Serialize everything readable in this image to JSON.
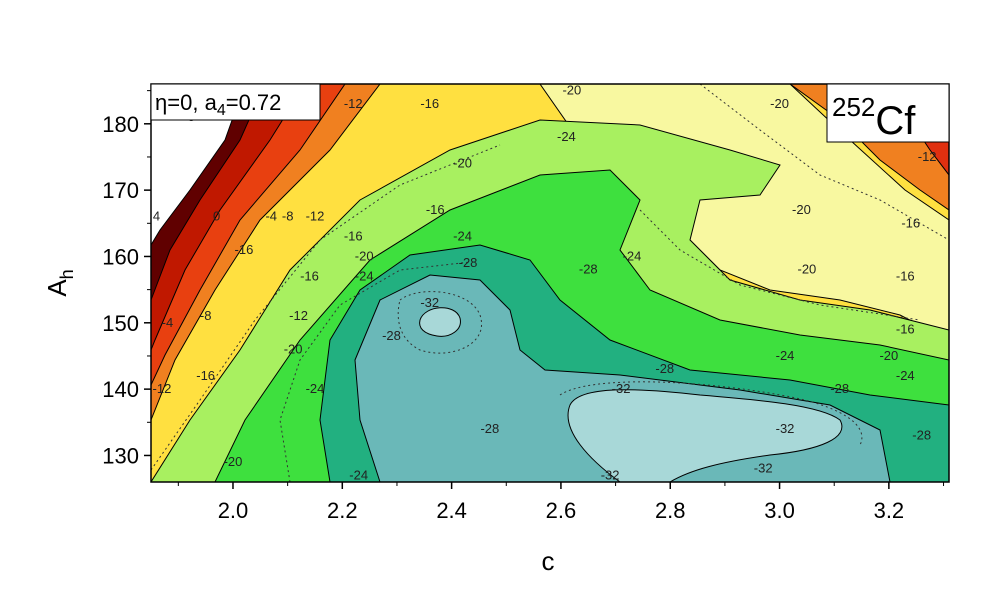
{
  "chart_data": {
    "type": "heatmap",
    "subtype": "contour",
    "title": "",
    "xlabel": "c",
    "ylabel_main": "A",
    "ylabel_sub": "h",
    "xlim": [
      1.85,
      3.31
    ],
    "ylim": [
      126,
      186
    ],
    "xticks": [
      "2.0",
      "2.2",
      "2.4",
      "2.6",
      "2.8",
      "3.0",
      "3.2"
    ],
    "xtick_values": [
      2.0,
      2.2,
      2.4,
      2.6,
      2.8,
      3.0,
      3.2
    ],
    "yticks": [
      "130",
      "140",
      "150",
      "160",
      "170",
      "180"
    ],
    "ytick_values": [
      130,
      140,
      150,
      160,
      170,
      180
    ],
    "annotation_params": {
      "eta": "η=0",
      "sep": ", ",
      "a4_label": "a",
      "a4_sub": "4",
      "a4_value": "=0.72"
    },
    "annotation_nucleus": {
      "mass": "252",
      "element": "Cf"
    },
    "levels": [
      -34,
      -32,
      -28,
      -24,
      -20,
      -16,
      -12,
      -8,
      -4,
      0,
      4
    ],
    "level_colors": [
      "#a8d8d8",
      "#6ab8b8",
      "#22b080",
      "#3ee03e",
      "#a8f060",
      "#f8f8a0",
      "#ffe040",
      "#f08020",
      "#d02000",
      "#600000",
      "#ffffff"
    ],
    "contour_labels": [
      {
        "c": 1.92,
        "A": 181,
        "text": "-8"
      },
      {
        "c": 1.97,
        "A": 183,
        "text": "-4"
      },
      {
        "c": 2.09,
        "A": 183,
        "text": "-4"
      },
      {
        "c": 2.15,
        "A": 183,
        "text": "-8"
      },
      {
        "c": 2.22,
        "A": 183,
        "text": "-12"
      },
      {
        "c": 2.36,
        "A": 183,
        "text": "-16"
      },
      {
        "c": 2.62,
        "A": 185,
        "text": "-20"
      },
      {
        "c": 3.0,
        "A": 183,
        "text": "-20"
      },
      {
        "c": 3.12,
        "A": 185,
        "text": "-16"
      },
      {
        "c": 3.27,
        "A": 175,
        "text": "-12"
      },
      {
        "c": 3.24,
        "A": 165,
        "text": "-16"
      },
      {
        "c": 3.23,
        "A": 157,
        "text": "-16"
      },
      {
        "c": 3.23,
        "A": 149,
        "text": "-16"
      },
      {
        "c": 3.2,
        "A": 145,
        "text": "-20"
      },
      {
        "c": 3.23,
        "A": 142,
        "text": "-24"
      },
      {
        "c": 3.11,
        "A": 140,
        "text": "-28"
      },
      {
        "c": 3.26,
        "A": 133,
        "text": "-28"
      },
      {
        "c": 3.05,
        "A": 158,
        "text": "-20"
      },
      {
        "c": 3.04,
        "A": 167,
        "text": "-20"
      },
      {
        "c": 3.01,
        "A": 145,
        "text": "-24"
      },
      {
        "c": 2.61,
        "A": 178,
        "text": "-24"
      },
      {
        "c": 2.42,
        "A": 174,
        "text": "-20"
      },
      {
        "c": 2.37,
        "A": 167,
        "text": "-16"
      },
      {
        "c": 2.42,
        "A": 163,
        "text": "-24"
      },
      {
        "c": 2.43,
        "A": 159,
        "text": "-28"
      },
      {
        "c": 2.24,
        "A": 160,
        "text": "-20"
      },
      {
        "c": 2.22,
        "A": 163,
        "text": "-16"
      },
      {
        "c": 2.1,
        "A": 166,
        "text": "-8"
      },
      {
        "c": 2.15,
        "A": 166,
        "text": "-12"
      },
      {
        "c": 2.07,
        "A": 166,
        "text": "-4"
      },
      {
        "c": 1.97,
        "A": 166,
        "text": "0"
      },
      {
        "c": 1.86,
        "A": 166,
        "text": "4"
      },
      {
        "c": 2.02,
        "A": 161,
        "text": "-16"
      },
      {
        "c": 2.14,
        "A": 157,
        "text": "-16"
      },
      {
        "c": 2.24,
        "A": 157,
        "text": "-24"
      },
      {
        "c": 2.12,
        "A": 151,
        "text": "-12"
      },
      {
        "c": 1.88,
        "A": 150,
        "text": "-4"
      },
      {
        "c": 1.95,
        "A": 151,
        "text": "-8"
      },
      {
        "c": 2.11,
        "A": 146,
        "text": "-20"
      },
      {
        "c": 2.29,
        "A": 148,
        "text": "-28"
      },
      {
        "c": 2.36,
        "A": 153,
        "text": "-32"
      },
      {
        "c": 2.65,
        "A": 158,
        "text": "-28"
      },
      {
        "c": 2.73,
        "A": 160,
        "text": "-24"
      },
      {
        "c": 2.79,
        "A": 143,
        "text": "-28"
      },
      {
        "c": 1.95,
        "A": 142,
        "text": "-16"
      },
      {
        "c": 1.87,
        "A": 140,
        "text": "-12"
      },
      {
        "c": 2.15,
        "A": 140,
        "text": "-24"
      },
      {
        "c": 2.71,
        "A": 140,
        "text": "-32"
      },
      {
        "c": 2.47,
        "A": 134,
        "text": "-28"
      },
      {
        "c": 3.01,
        "A": 134,
        "text": "-32"
      },
      {
        "c": 2.0,
        "A": 129,
        "text": "-20"
      },
      {
        "c": 2.23,
        "A": 127,
        "text": "-24"
      },
      {
        "c": 2.69,
        "A": 127,
        "text": "-32"
      },
      {
        "c": 2.97,
        "A": 128,
        "text": "-32"
      }
    ]
  }
}
